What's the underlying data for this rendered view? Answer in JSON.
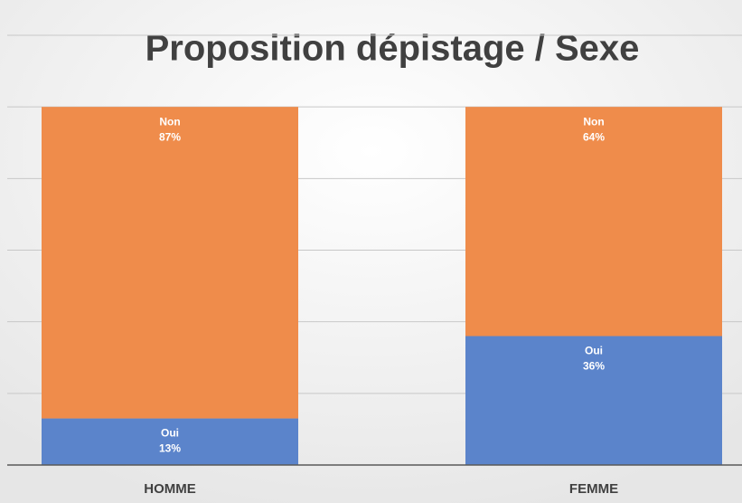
{
  "chart_data": {
    "type": "stacked_bar",
    "title": "Proposition dépistage / Sexe",
    "categories": [
      "HOMME",
      "FEMME"
    ],
    "series": [
      {
        "name": "Oui",
        "color": "#5b84cb",
        "values": [
          13,
          36
        ],
        "value_labels": [
          "13%",
          "36%"
        ]
      },
      {
        "name": "Non",
        "color": "#ef8c4b",
        "values": [
          87,
          64
        ],
        "value_labels": [
          "87%",
          "64%"
        ]
      }
    ],
    "ylim": [
      0,
      120
    ],
    "yticks": [
      0,
      20,
      40,
      60,
      80,
      100,
      120
    ],
    "grid": true
  }
}
